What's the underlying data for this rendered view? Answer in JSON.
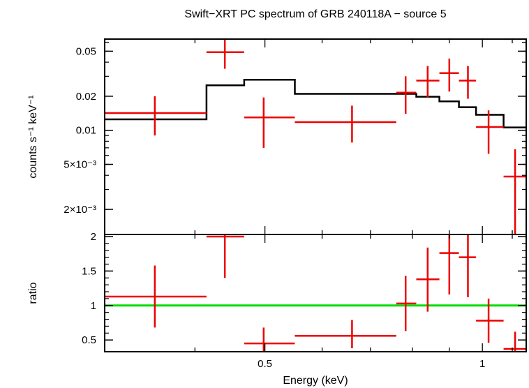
{
  "title": "Swift−XRT PC spectrum of GRB 240118A − source 5",
  "x_axis": {
    "label": "Energy (keV)",
    "scale": "log",
    "range": [
      0.3,
      1.15
    ],
    "ticks": [
      {
        "value": 0.5,
        "label": "0.5"
      },
      {
        "value": 1,
        "label": "1"
      }
    ]
  },
  "colors": {
    "data": "#ee0000",
    "model": "#000000",
    "unity": "#00dd00"
  },
  "chart_data": [
    {
      "type": "scatter",
      "panel": "spectrum",
      "ylabel": "counts s⁻¹ keV⁻¹",
      "yscale": "log",
      "ylim": [
        0.0012,
        0.064
      ],
      "yticks": [
        {
          "value": 0.05,
          "label": "0.05"
        },
        {
          "value": 0.02,
          "label": "0.02"
        },
        {
          "value": 0.01,
          "label": "0.01"
        },
        {
          "value": 0.005,
          "label": "5×10⁻³"
        },
        {
          "value": 0.002,
          "label": "2×10⁻³"
        }
      ],
      "points": [
        {
          "x": 0.352,
          "xlo": 0.3,
          "xhi": 0.415,
          "y": 0.0142,
          "ylo": 0.009,
          "yhi": 0.02
        },
        {
          "x": 0.44,
          "xlo": 0.415,
          "xhi": 0.468,
          "y": 0.049,
          "ylo": 0.035,
          "yhi": 0.064
        },
        {
          "x": 0.498,
          "xlo": 0.468,
          "xhi": 0.55,
          "y": 0.013,
          "ylo": 0.007,
          "yhi": 0.0195
        },
        {
          "x": 0.66,
          "xlo": 0.55,
          "xhi": 0.76,
          "y": 0.0118,
          "ylo": 0.0078,
          "yhi": 0.0165
        },
        {
          "x": 0.783,
          "xlo": 0.76,
          "xhi": 0.81,
          "y": 0.0215,
          "ylo": 0.014,
          "yhi": 0.03
        },
        {
          "x": 0.84,
          "xlo": 0.81,
          "xhi": 0.872,
          "y": 0.0275,
          "ylo": 0.0195,
          "yhi": 0.037
        },
        {
          "x": 0.9,
          "xlo": 0.872,
          "xhi": 0.928,
          "y": 0.032,
          "ylo": 0.022,
          "yhi": 0.043
        },
        {
          "x": 0.955,
          "xlo": 0.928,
          "xhi": 0.98,
          "y": 0.0275,
          "ylo": 0.019,
          "yhi": 0.037
        },
        {
          "x": 1.02,
          "xlo": 0.98,
          "xhi": 1.07,
          "y": 0.0107,
          "ylo": 0.0062,
          "yhi": 0.015
        },
        {
          "x": 1.11,
          "xlo": 1.07,
          "xhi": 1.15,
          "y": 0.0039,
          "ylo": 0.0012,
          "yhi": 0.0068
        }
      ],
      "model_steps": [
        {
          "x0": 0.3,
          "x1": 0.415,
          "y": 0.0125
        },
        {
          "x0": 0.415,
          "x1": 0.468,
          "y": 0.025
        },
        {
          "x0": 0.468,
          "x1": 0.55,
          "y": 0.028
        },
        {
          "x0": 0.55,
          "x1": 0.76,
          "y": 0.021
        },
        {
          "x0": 0.76,
          "x1": 0.81,
          "y": 0.021
        },
        {
          "x0": 0.81,
          "x1": 0.872,
          "y": 0.0198
        },
        {
          "x0": 0.872,
          "x1": 0.928,
          "y": 0.018
        },
        {
          "x0": 0.928,
          "x1": 0.98,
          "y": 0.016
        },
        {
          "x0": 0.98,
          "x1": 1.07,
          "y": 0.0137
        },
        {
          "x0": 1.07,
          "x1": 1.15,
          "y": 0.0106
        }
      ]
    },
    {
      "type": "scatter",
      "panel": "ratio",
      "ylabel": "ratio",
      "yscale": "linear",
      "ylim": [
        0.33,
        2.03
      ],
      "yticks": [
        {
          "value": 0.5,
          "label": "0.5"
        },
        {
          "value": 1,
          "label": "1"
        },
        {
          "value": 1.5,
          "label": "1.5"
        },
        {
          "value": 2,
          "label": "2"
        }
      ],
      "reference_line": 1,
      "points": [
        {
          "x": 0.352,
          "xlo": 0.3,
          "xhi": 0.415,
          "y": 1.13,
          "ylo": 0.68,
          "yhi": 1.58
        },
        {
          "x": 0.44,
          "xlo": 0.415,
          "xhi": 0.468,
          "y": 2.0,
          "ylo": 1.4,
          "yhi": 2.03
        },
        {
          "x": 0.498,
          "xlo": 0.468,
          "xhi": 0.55,
          "y": 0.45,
          "ylo": 0.33,
          "yhi": 0.68
        },
        {
          "x": 0.66,
          "xlo": 0.55,
          "xhi": 0.76,
          "y": 0.56,
          "ylo": 0.38,
          "yhi": 0.79
        },
        {
          "x": 0.783,
          "xlo": 0.76,
          "xhi": 0.81,
          "y": 1.03,
          "ylo": 0.63,
          "yhi": 1.43
        },
        {
          "x": 0.84,
          "xlo": 0.81,
          "xhi": 0.872,
          "y": 1.38,
          "ylo": 0.91,
          "yhi": 1.84
        },
        {
          "x": 0.9,
          "xlo": 0.872,
          "xhi": 0.928,
          "y": 1.76,
          "ylo": 1.16,
          "yhi": 2.03
        },
        {
          "x": 0.955,
          "xlo": 0.928,
          "xhi": 0.98,
          "y": 1.7,
          "ylo": 1.12,
          "yhi": 2.03
        },
        {
          "x": 1.02,
          "xlo": 0.98,
          "xhi": 1.07,
          "y": 0.78,
          "ylo": 0.46,
          "yhi": 1.1
        },
        {
          "x": 1.11,
          "xlo": 1.07,
          "xhi": 1.15,
          "y": 0.37,
          "ylo": 0.33,
          "yhi": 0.62
        }
      ]
    }
  ]
}
